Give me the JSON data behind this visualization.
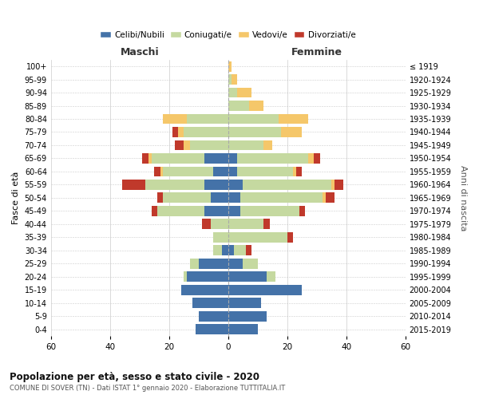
{
  "age_groups": [
    "0-4",
    "5-9",
    "10-14",
    "15-19",
    "20-24",
    "25-29",
    "30-34",
    "35-39",
    "40-44",
    "45-49",
    "50-54",
    "55-59",
    "60-64",
    "65-69",
    "70-74",
    "75-79",
    "80-84",
    "85-89",
    "90-94",
    "95-99",
    "100+"
  ],
  "birth_years": [
    "2015-2019",
    "2010-2014",
    "2005-2009",
    "2000-2004",
    "1995-1999",
    "1990-1994",
    "1985-1989",
    "1980-1984",
    "1975-1979",
    "1970-1974",
    "1965-1969",
    "1960-1964",
    "1955-1959",
    "1950-1954",
    "1945-1949",
    "1940-1944",
    "1935-1939",
    "1930-1934",
    "1925-1929",
    "1920-1924",
    "≤ 1919"
  ],
  "male": {
    "celibi": [
      11,
      10,
      12,
      16,
      14,
      10,
      2,
      0,
      0,
      8,
      6,
      8,
      5,
      8,
      0,
      0,
      0,
      0,
      0,
      0,
      0
    ],
    "coniugati": [
      0,
      0,
      0,
      0,
      1,
      3,
      3,
      5,
      6,
      16,
      16,
      20,
      17,
      18,
      13,
      15,
      14,
      0,
      0,
      0,
      0
    ],
    "vedovi": [
      0,
      0,
      0,
      0,
      0,
      0,
      0,
      0,
      0,
      0,
      0,
      0,
      1,
      1,
      2,
      2,
      8,
      0,
      0,
      0,
      0
    ],
    "divorziati": [
      0,
      0,
      0,
      0,
      0,
      0,
      0,
      0,
      3,
      2,
      2,
      8,
      2,
      2,
      3,
      2,
      0,
      0,
      0,
      0,
      0
    ]
  },
  "female": {
    "nubili": [
      10,
      13,
      11,
      25,
      13,
      5,
      2,
      0,
      0,
      4,
      4,
      5,
      3,
      3,
      0,
      0,
      0,
      0,
      0,
      0,
      0
    ],
    "coniugate": [
      0,
      0,
      0,
      0,
      3,
      5,
      4,
      20,
      12,
      20,
      28,
      30,
      19,
      24,
      12,
      18,
      17,
      7,
      3,
      1,
      0
    ],
    "vedove": [
      0,
      0,
      0,
      0,
      0,
      0,
      0,
      0,
      0,
      0,
      1,
      1,
      1,
      2,
      3,
      7,
      10,
      5,
      5,
      2,
      1
    ],
    "divorziate": [
      0,
      0,
      0,
      0,
      0,
      0,
      2,
      2,
      2,
      2,
      3,
      3,
      2,
      2,
      0,
      0,
      0,
      0,
      0,
      0,
      0
    ]
  },
  "colors": {
    "celibi_nubili": "#4472a8",
    "coniugati": "#c5d9a0",
    "vedovi": "#f5c76a",
    "divorziati": "#c0392b"
  },
  "xlim": 60,
  "title": "Popolazione per età, sesso e stato civile - 2020",
  "subtitle": "COMUNE DI SOVER (TN) - Dati ISTAT 1° gennaio 2020 - Elaborazione TUTTITALIA.IT",
  "ylabel_left": "Fasce di età",
  "ylabel_right": "Anni di nascita",
  "xlabel_left": "Maschi",
  "xlabel_right": "Femmine",
  "legend_labels": [
    "Celibi/Nubili",
    "Coniugati/e",
    "Vedovi/e",
    "Divorziati/e"
  ],
  "background_color": "#ffffff",
  "grid_color": "#cccccc"
}
